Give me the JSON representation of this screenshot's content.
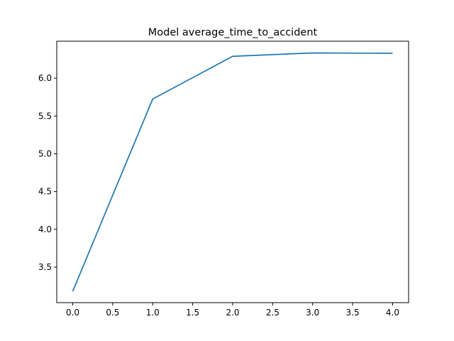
{
  "chart_data": {
    "type": "line",
    "title": "Model average_time_to_accident",
    "xlabel": "",
    "ylabel": "",
    "x": [
      0,
      1,
      2,
      3,
      4
    ],
    "series": [
      {
        "values": [
          3.18,
          5.725,
          6.29,
          6.335,
          6.33
        ],
        "color": "#1f77b4"
      }
    ],
    "xlim": [
      -0.2,
      4.2
    ],
    "ylim": [
      3.03,
      6.49
    ],
    "xticks": [
      0.0,
      0.5,
      1.0,
      1.5,
      2.0,
      2.5,
      3.0,
      3.5,
      4.0
    ],
    "xtick_labels": [
      "0.0",
      "0.5",
      "1.0",
      "1.5",
      "2.0",
      "2.5",
      "3.0",
      "3.5",
      "4.0"
    ],
    "yticks": [
      3.5,
      4.0,
      4.5,
      5.0,
      5.5,
      6.0
    ],
    "ytick_labels": [
      "3.5",
      "4.0",
      "4.5",
      "5.0",
      "5.5",
      "6.0"
    ],
    "grid": false,
    "legend": "none"
  }
}
